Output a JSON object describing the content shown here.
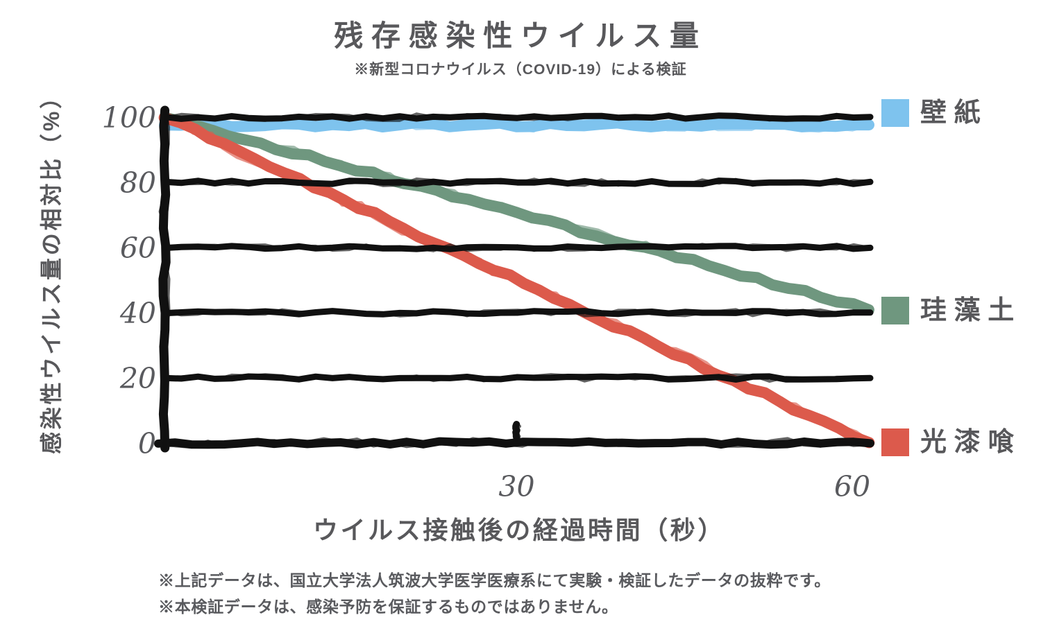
{
  "title": "残存感染性ウイルス量",
  "subtitle": "※新型コロナウイルス（COVID-19）による検証",
  "footer": {
    "line1": "※上記データは、国立大学法人筑波大学医学医療系にて実験・検証したデータの抜粋です。",
    "line2": "※本検証データは、感染予防を保証するものではありません。"
  },
  "chart_data": {
    "type": "line",
    "title": "残存感染性ウイルス量",
    "subtitle": "※新型コロナウイルス（COVID-19）による検証",
    "xlabel": "ウイルス接触後の経過時間（秒）",
    "ylabel": "感染性ウイルス量の相対比（%）",
    "x": [
      0,
      60
    ],
    "xlim": [
      0,
      60
    ],
    "ylim": [
      0,
      100
    ],
    "xticks": [
      30,
      60
    ],
    "yticks": [
      0,
      20,
      40,
      60,
      80,
      100
    ],
    "grid": "horizontal-only",
    "legend_position": "right-of-plot",
    "style": "hand-drawn",
    "ink_color": "#111111",
    "text_color": "#595A5E",
    "series": [
      {
        "name": "壁紙",
        "values": [
          100,
          100
        ],
        "color": "#7EC3EE"
      },
      {
        "name": "珪藻土",
        "values": [
          100,
          41
        ],
        "color": "#6F977F"
      },
      {
        "name": "光漆喰",
        "values": [
          100,
          0
        ],
        "color": "#DC5A4C"
      }
    ]
  }
}
